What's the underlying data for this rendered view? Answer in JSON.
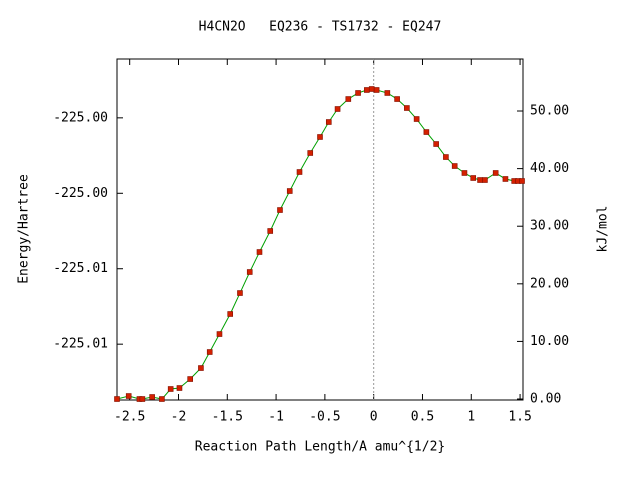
{
  "chart_data": {
    "type": "line",
    "title": "H4CN2O   EQ236 - TS1732 - EQ247",
    "x_label": "Reaction Path Length/A amu^{1/2}",
    "y_label": "Energy/Hartree",
    "y2_label": "kJ/mol",
    "xlim": [
      -2.63,
      1.53
    ],
    "xticks": [
      -2.5,
      -2,
      -1.5,
      -1,
      -0.5,
      0,
      0.5,
      1,
      1.5
    ],
    "ylim": [
      -225.0162,
      -224.9936
    ],
    "yticks": [
      {
        "value": -224.9975,
        "label": "-225.00"
      },
      {
        "value": -225.0025,
        "label": "-225.00"
      },
      {
        "value": -225.0075,
        "label": "-225.01"
      },
      {
        "value": -225.0125,
        "label": "-225.01"
      }
    ],
    "y2lim": [
      -0.17,
      59.03
    ],
    "y2ticks": [
      {
        "value": 0,
        "label": "0.00"
      },
      {
        "value": 10,
        "label": "10.00"
      },
      {
        "value": 20,
        "label": "20.00"
      },
      {
        "value": 30,
        "label": "30.00"
      },
      {
        "value": 40,
        "label": "40.00"
      },
      {
        "value": 50,
        "label": "50.00"
      }
    ],
    "reference_x": 0,
    "line_color": "#00a000",
    "marker_color": "#d42000",
    "x": [
      -2.63,
      -2.51,
      -2.4,
      -2.37,
      -2.27,
      -2.17,
      -2.08,
      -1.99,
      -1.88,
      -1.77,
      -1.68,
      -1.58,
      -1.47,
      -1.37,
      -1.27,
      -1.17,
      -1.06,
      -0.96,
      -0.86,
      -0.76,
      -0.65,
      -0.55,
      -0.46,
      -0.37,
      -0.26,
      -0.16,
      -0.07,
      -0.02,
      0.03,
      0.14,
      0.24,
      0.34,
      0.44,
      0.54,
      0.64,
      0.74,
      0.83,
      0.93,
      1.02,
      1.09,
      1.14,
      1.25,
      1.35,
      1.44,
      1.48,
      1.52
    ],
    "series": [
      {
        "axis": "y2",
        "values": [
          0,
          0.52,
          0,
          0,
          0.35,
          0,
          1.74,
          1.91,
          3.47,
          5.38,
          8.16,
          11.28,
          14.76,
          18.4,
          22.05,
          25.52,
          29.17,
          32.81,
          36.11,
          39.41,
          42.71,
          45.49,
          48.09,
          50.35,
          52.08,
          53.13,
          53.65,
          53.82,
          53.65,
          53.13,
          52.08,
          50.52,
          48.61,
          46.35,
          44.27,
          42.01,
          40.45,
          39.24,
          38.37,
          38.02,
          38.02,
          39.24,
          38.2,
          37.85,
          37.85,
          37.85
        ]
      }
    ]
  }
}
